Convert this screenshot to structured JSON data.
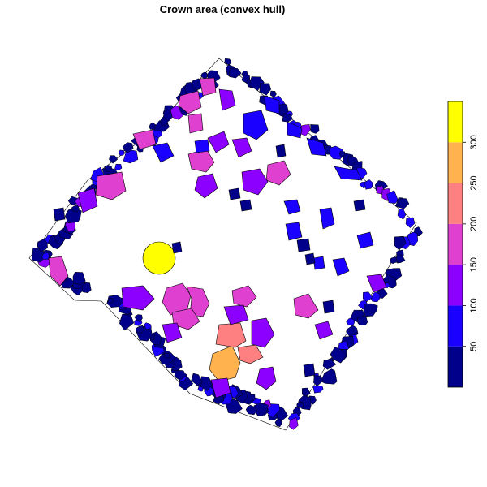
{
  "title": "Crown area (convex hull)",
  "colors": {
    "background": "#ffffff",
    "crown_outline": "#000000"
  },
  "legend": {
    "position": "right",
    "orientation": "vertical",
    "bins": [
      {
        "from": 0,
        "to": 50,
        "color": "#00008b"
      },
      {
        "from": 50,
        "to": 100,
        "color": "#1a00ff"
      },
      {
        "from": 100,
        "to": 150,
        "color": "#8b00ff"
      },
      {
        "from": 150,
        "to": 200,
        "color": "#e040d0"
      },
      {
        "from": 200,
        "to": 250,
        "color": "#ff8080"
      },
      {
        "from": 250,
        "to": 300,
        "color": "#ffb24d"
      },
      {
        "from": 300,
        "to": 350,
        "color": "#ffff00"
      }
    ],
    "tick_labels": [
      "50",
      "100",
      "150",
      "200",
      "250",
      "300"
    ]
  },
  "map_data": {
    "type": "choropleth-polygons",
    "variable": "crown area",
    "notable_crowns": [
      {
        "area": 330,
        "color": "#ffff00"
      },
      {
        "area": 270,
        "color": "#ffb24d"
      },
      {
        "area": 225,
        "color": "#ff8080"
      },
      {
        "area": 180,
        "color": "#e040d0"
      },
      {
        "area": 130,
        "color": "#8b00ff"
      },
      {
        "area": 80,
        "color": "#1a00ff"
      },
      {
        "area": 30,
        "color": "#00008b"
      }
    ]
  }
}
